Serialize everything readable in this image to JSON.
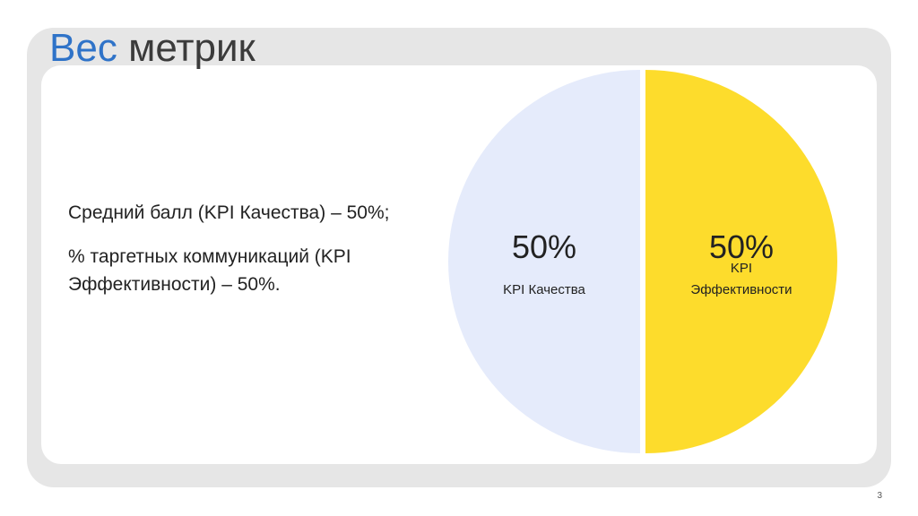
{
  "slide": {
    "title_accent": "Вес",
    "title_rest": "метрик",
    "bullets": [
      "Средний балл (KPI Качества) – 50%;",
      "% таргетных коммуникаций (KPI Эффективности) – 50%."
    ],
    "page_number": "3"
  },
  "chart_data": {
    "type": "pie",
    "title": "",
    "slices": [
      {
        "label": "KPI Качества",
        "value": 50,
        "value_label": "50%",
        "color": "#e5ebfb"
      },
      {
        "label": "KPI Эффективности",
        "value": 50,
        "value_label": "50%",
        "color": "#fddc2c"
      }
    ]
  }
}
